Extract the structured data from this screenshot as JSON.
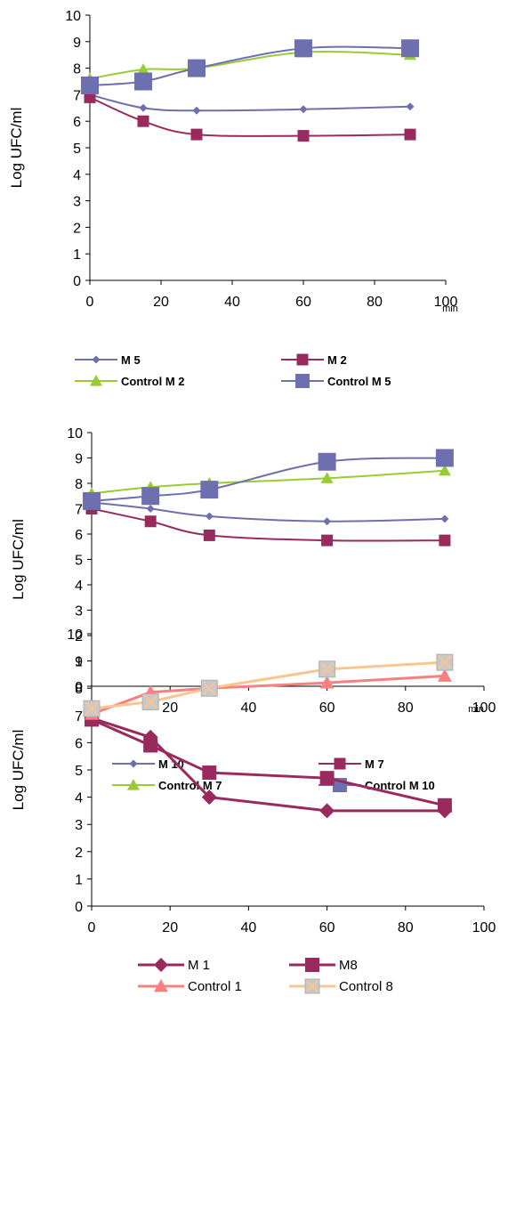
{
  "chart_data": [
    {
      "type": "line",
      "ylabel": "Log UFC/ml",
      "xlabel_unit": "min",
      "xlim": [
        0,
        100
      ],
      "ylim": [
        0,
        10
      ],
      "xticks": [
        0,
        20,
        40,
        60,
        80,
        100
      ],
      "yticks": [
        0,
        1,
        2,
        3,
        4,
        5,
        6,
        7,
        8,
        9,
        10
      ],
      "grid": false,
      "legend_position": "bottom",
      "legend_bold": true,
      "series": [
        {
          "name": "M 5",
          "color": "#6e6fae",
          "marker": "diamond",
          "marker_size": 9,
          "x": [
            0,
            15,
            30,
            60,
            90
          ],
          "y": [
            7.0,
            6.5,
            6.4,
            6.45,
            6.55
          ]
        },
        {
          "name": "M 2",
          "color": "#9a2a5e",
          "marker": "square",
          "marker_size": 13,
          "x": [
            0,
            15,
            30,
            60,
            90
          ],
          "y": [
            6.9,
            6.0,
            5.5,
            5.45,
            5.5
          ]
        },
        {
          "name": "Control M 2",
          "color": "#99cc33",
          "marker": "triangle",
          "marker_size": 14,
          "x": [
            0,
            15,
            30,
            60,
            90
          ],
          "y": [
            7.6,
            7.95,
            8.0,
            8.6,
            8.5
          ]
        },
        {
          "name": "Control M 5",
          "color": "#6e6fae",
          "marker": "square",
          "marker_size": 20,
          "x": [
            0,
            15,
            30,
            60,
            90
          ],
          "y": [
            7.35,
            7.5,
            8.0,
            8.75,
            8.75
          ]
        }
      ]
    },
    {
      "type": "line",
      "ylabel": "Log UFC/ml",
      "xlabel_unit": "min",
      "xlim": [
        0,
        100
      ],
      "ylim": [
        0,
        10
      ],
      "xticks": [
        0,
        20,
        40,
        60,
        80,
        100
      ],
      "yticks": [
        0,
        1,
        2,
        3,
        4,
        5,
        6,
        7,
        8,
        9,
        10
      ],
      "grid": false,
      "legend_position": "bottom",
      "legend_bold": true,
      "series": [
        {
          "name": "M 10",
          "color": "#6e6fae",
          "marker": "diamond",
          "marker_size": 9,
          "x": [
            0,
            15,
            30,
            60,
            90
          ],
          "y": [
            7.25,
            7.0,
            6.7,
            6.5,
            6.6
          ]
        },
        {
          "name": "M 7",
          "color": "#9a2a5e",
          "marker": "square",
          "marker_size": 13,
          "x": [
            0,
            15,
            30,
            60,
            90
          ],
          "y": [
            7.0,
            6.5,
            5.95,
            5.75,
            5.75
          ]
        },
        {
          "name": "Control M 7",
          "color": "#99cc33",
          "marker": "triangle",
          "marker_size": 14,
          "x": [
            0,
            15,
            30,
            60,
            90
          ],
          "y": [
            7.6,
            7.85,
            8.0,
            8.2,
            8.5
          ]
        },
        {
          "name": "Control M 10",
          "color": "#6e6fae",
          "marker": "square",
          "marker_size": 20,
          "x": [
            0,
            15,
            30,
            60,
            90
          ],
          "y": [
            7.3,
            7.5,
            7.75,
            8.85,
            9.0
          ]
        }
      ]
    },
    {
      "type": "line",
      "ylabel": "Log UFC/ml",
      "xlabel_unit": "",
      "xlim": [
        0,
        100
      ],
      "ylim": [
        0,
        10
      ],
      "xticks": [
        0,
        20,
        40,
        60,
        80,
        100
      ],
      "yticks": [
        0,
        1,
        2,
        3,
        4,
        5,
        6,
        7,
        8,
        9,
        10
      ],
      "grid": false,
      "legend_position": "bottom",
      "legend_bold": false,
      "series": [
        {
          "name": "M 1",
          "color": "#9a2a5e",
          "marker": "diamond",
          "marker_size": 17,
          "x": [
            0,
            15,
            30,
            60,
            90
          ],
          "y": [
            6.9,
            6.2,
            4.0,
            3.5,
            3.5
          ]
        },
        {
          "name": "M8",
          "color": "#9a2a5e",
          "marker": "square",
          "marker_size": 16,
          "x": [
            0,
            15,
            30,
            60,
            90
          ],
          "y": [
            6.85,
            5.9,
            4.9,
            4.7,
            3.7
          ]
        },
        {
          "name": "Control 1",
          "color": "#f8817f",
          "marker": "triangle",
          "marker_size": 16,
          "x": [
            0,
            15,
            30,
            60,
            90
          ],
          "y": [
            7.05,
            7.85,
            8.0,
            8.2,
            8.45
          ]
        },
        {
          "name": "Control 8",
          "color": "#fbc58f",
          "marker": "xsquare",
          "marker_size": 18,
          "x": [
            0,
            15,
            30,
            60,
            90
          ],
          "y": [
            7.25,
            7.5,
            8.0,
            8.7,
            8.95
          ]
        }
      ]
    }
  ]
}
